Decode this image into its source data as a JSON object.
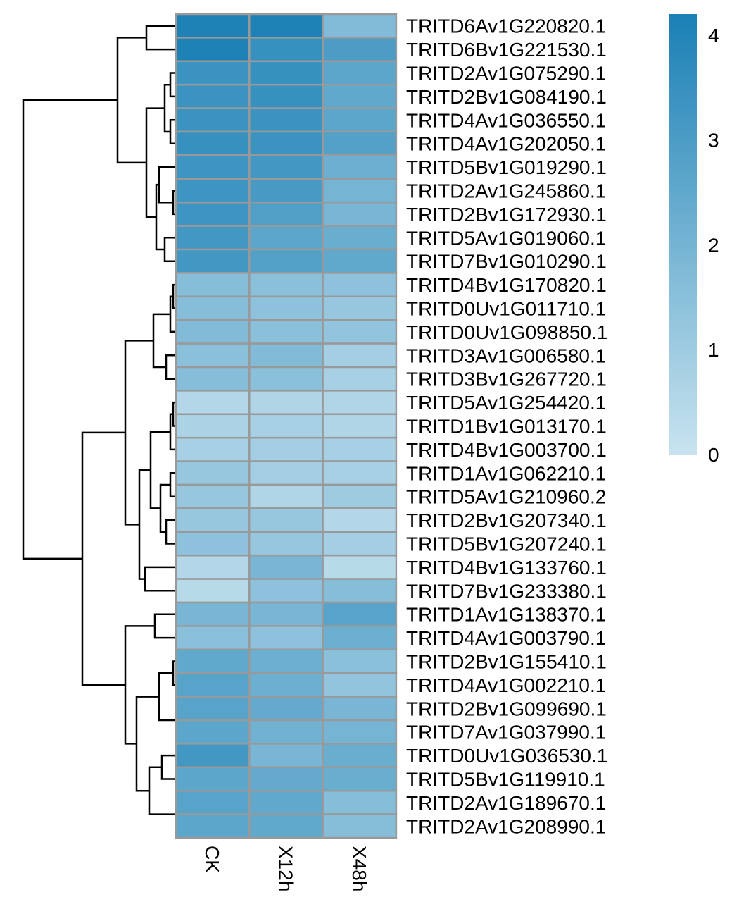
{
  "chart_data": {
    "type": "heatmap",
    "title": "",
    "columns": [
      "CK",
      "X12h",
      "X48h"
    ],
    "rows": [
      "TRITD6Av1G220820.1",
      "TRITD6Bv1G221530.1",
      "TRITD2Av1G075290.1",
      "TRITD2Bv1G084190.1",
      "TRITD4Av1G036550.1",
      "TRITD4Av1G202050.1",
      "TRITD5Bv1G019290.1",
      "TRITD2Av1G245860.1",
      "TRITD2Bv1G172930.1",
      "TRITD5Av1G019060.1",
      "TRITD7Bv1G010290.1",
      "TRITD4Bv1G170820.1",
      "TRITD0Uv1G011710.1",
      "TRITD0Uv1G098850.1",
      "TRITD3Av1G006580.1",
      "TRITD3Bv1G267720.1",
      "TRITD5Av1G254420.1",
      "TRITD1Bv1G013170.1",
      "TRITD4Bv1G003700.1",
      "TRITD1Av1G062210.1",
      "TRITD5Av1G210960.2",
      "TRITD2Bv1G207340.1",
      "TRITD5Bv1G207240.1",
      "TRITD4Bv1G133760.1",
      "TRITD7Bv1G233380.1",
      "TRITD1Av1G138370.1",
      "TRITD4Av1G003790.1",
      "TRITD2Bv1G155410.1",
      "TRITD4Av1G002210.1",
      "TRITD2Bv1G099690.1",
      "TRITD7Av1G037990.1",
      "TRITD0Uv1G036530.1",
      "TRITD5Bv1G119910.1",
      "TRITD2Av1G189670.1",
      "TRITD2Av1G208990.1"
    ],
    "values": [
      [
        4.1,
        4.1,
        1.7
      ],
      [
        4.1,
        3.5,
        3.0
      ],
      [
        3.4,
        3.5,
        2.6
      ],
      [
        3.4,
        3.5,
        2.5
      ],
      [
        3.4,
        3.4,
        2.6
      ],
      [
        3.5,
        3.4,
        2.8
      ],
      [
        3.3,
        3.2,
        2.2
      ],
      [
        3.3,
        3.1,
        2.0
      ],
      [
        3.3,
        2.9,
        1.9
      ],
      [
        3.2,
        2.6,
        2.3
      ],
      [
        3.2,
        2.8,
        2.5
      ],
      [
        1.6,
        1.5,
        1.4
      ],
      [
        1.6,
        1.4,
        1.2
      ],
      [
        1.7,
        1.5,
        1.3
      ],
      [
        1.5,
        1.7,
        0.9
      ],
      [
        1.6,
        1.5,
        0.8
      ],
      [
        0.5,
        0.6,
        0.6
      ],
      [
        0.7,
        0.8,
        0.6
      ],
      [
        0.8,
        0.9,
        0.8
      ],
      [
        1.2,
        0.9,
        0.8
      ],
      [
        1.2,
        0.6,
        1.0
      ],
      [
        1.2,
        1.2,
        0.5
      ],
      [
        1.4,
        1.2,
        0.9
      ],
      [
        0.5,
        1.9,
        0.4
      ],
      [
        0.4,
        1.4,
        1.6
      ],
      [
        1.9,
        1.9,
        2.7
      ],
      [
        1.5,
        1.4,
        2.2
      ],
      [
        2.5,
        2.2,
        1.5
      ],
      [
        2.7,
        2.2,
        1.3
      ],
      [
        2.7,
        2.4,
        1.9
      ],
      [
        2.6,
        2.1,
        2.0
      ],
      [
        3.2,
        1.9,
        2.3
      ],
      [
        2.6,
        2.4,
        2.3
      ],
      [
        2.7,
        2.5,
        1.6
      ],
      [
        2.6,
        2.5,
        1.6
      ]
    ],
    "colorscale": {
      "min": 0,
      "max": 4.2,
      "low_color": "#c8e3ef",
      "high_color": "#1a80b5",
      "ticks": [
        0,
        1,
        2,
        3,
        4
      ]
    },
    "cell_border_color": "#999999",
    "row_dendrogram": true
  }
}
